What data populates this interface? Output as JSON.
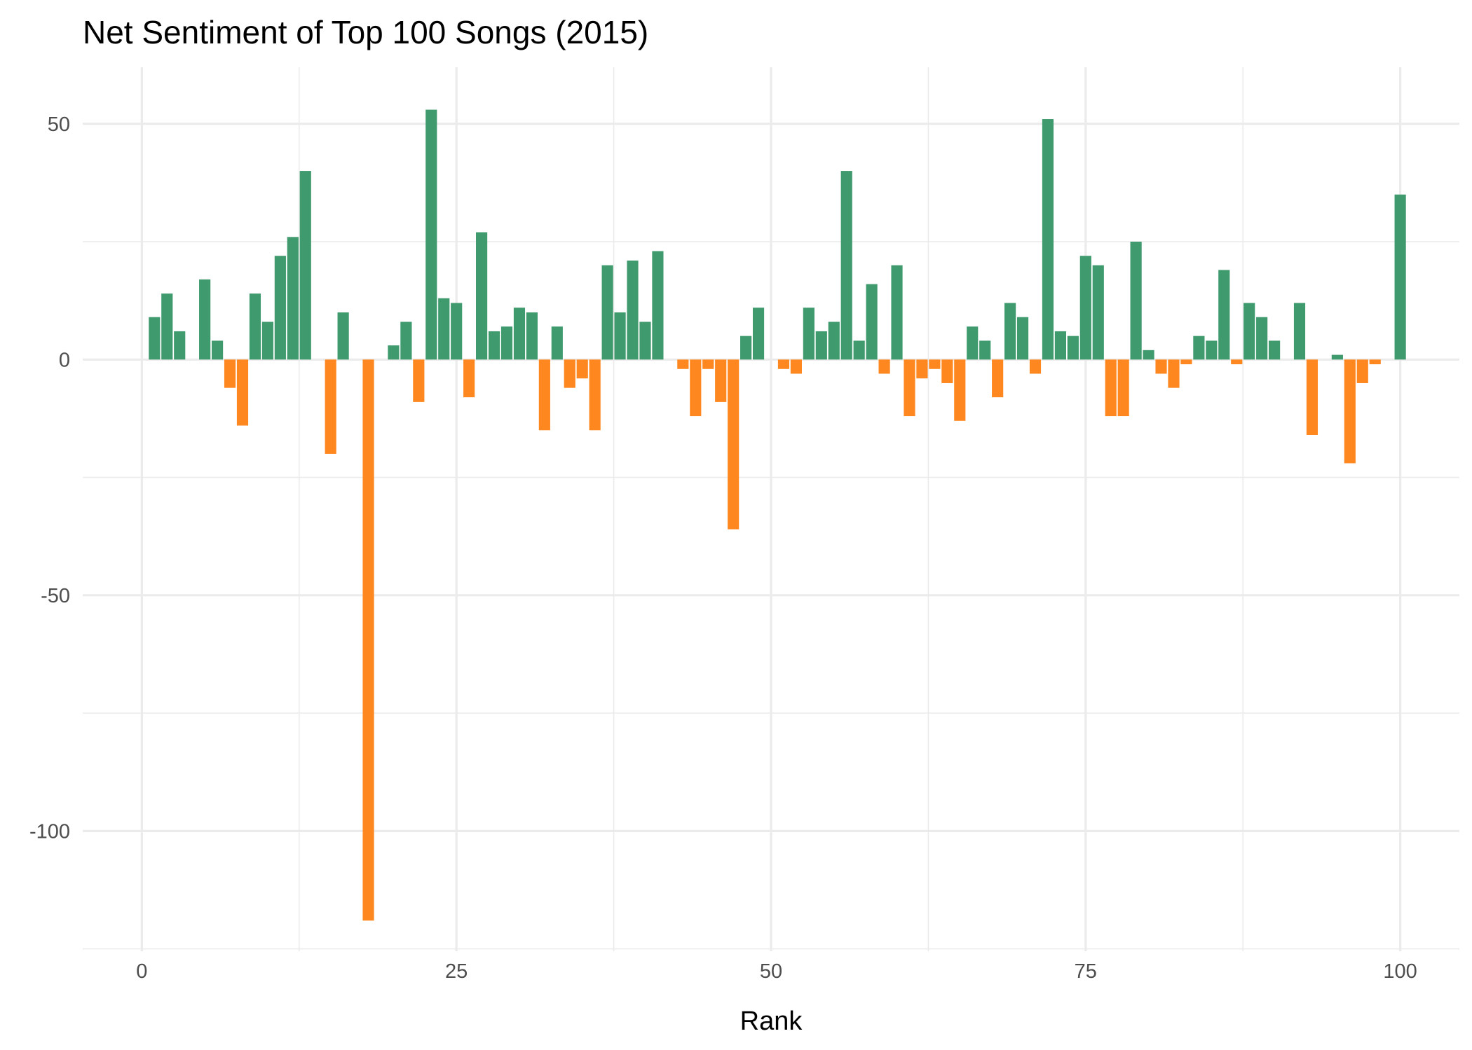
{
  "chart_data": {
    "type": "bar",
    "title": "Net Sentiment of Top 100 Songs (2015)",
    "xlabel": "Rank",
    "ylabel": "",
    "xlim": [
      -4.7,
      104.7
    ],
    "ylim": [
      -125.5,
      62
    ],
    "x_ticks": [
      0,
      25,
      50,
      75,
      100
    ],
    "y_ticks": [
      50,
      0,
      -50,
      -100
    ],
    "x_tick_labels": [
      "0",
      "25",
      "50",
      "75",
      "100"
    ],
    "y_tick_labels": [
      "50",
      "0",
      "-50",
      "-100"
    ],
    "grid": true,
    "legend": "none",
    "colors": {
      "positive": "#3f9a6e",
      "negative": "#ff8720",
      "grid": "#ebebeb"
    },
    "x": [
      1,
      2,
      3,
      4,
      5,
      6,
      7,
      8,
      9,
      10,
      11,
      12,
      13,
      14,
      15,
      16,
      17,
      18,
      19,
      20,
      21,
      22,
      23,
      24,
      25,
      26,
      27,
      28,
      29,
      30,
      31,
      32,
      33,
      34,
      35,
      36,
      37,
      38,
      39,
      40,
      41,
      42,
      43,
      44,
      45,
      46,
      47,
      48,
      49,
      50,
      51,
      52,
      53,
      54,
      55,
      56,
      57,
      58,
      59,
      60,
      61,
      62,
      63,
      64,
      65,
      66,
      67,
      68,
      69,
      70,
      71,
      72,
      73,
      74,
      75,
      76,
      77,
      78,
      79,
      80,
      81,
      82,
      83,
      84,
      85,
      86,
      87,
      88,
      89,
      90,
      91,
      92,
      93,
      94,
      95,
      96,
      97,
      98,
      99,
      100
    ],
    "values": [
      9,
      14,
      6,
      0,
      17,
      4,
      -6,
      -14,
      14,
      8,
      22,
      26,
      40,
      0,
      -20,
      10,
      0,
      -119,
      0,
      3,
      8,
      -9,
      53,
      13,
      12,
      -8,
      27,
      6,
      7,
      11,
      10,
      -15,
      7,
      -6,
      -4,
      -15,
      20,
      10,
      21,
      8,
      23,
      0,
      -2,
      -12,
      -2,
      -9,
      -36,
      5,
      11,
      0,
      -2,
      -3,
      11,
      6,
      8,
      40,
      4,
      16,
      -3,
      20,
      -12,
      -4,
      -2,
      -5,
      -13,
      7,
      4,
      -8,
      12,
      9,
      -3,
      51,
      6,
      5,
      22,
      20,
      -12,
      -12,
      25,
      2,
      -3,
      -6,
      -1,
      5,
      4,
      19,
      -1,
      12,
      9,
      4,
      0,
      12,
      -16,
      0,
      1,
      -22,
      -5,
      -1,
      0,
      35
    ]
  }
}
